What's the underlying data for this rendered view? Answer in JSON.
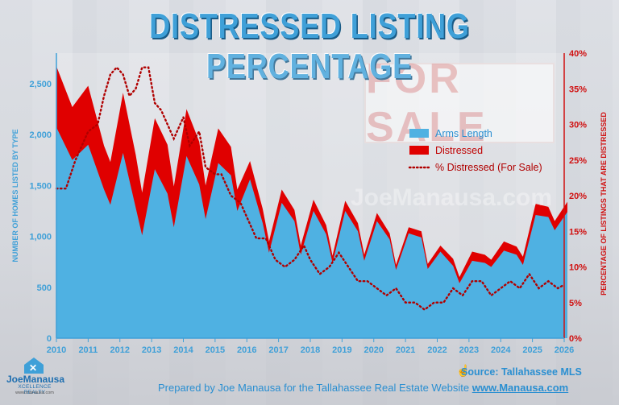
{
  "title": "DISTRESSED LISTING PERCENTAGE",
  "background_sign": "FOR SALE",
  "watermark": "JoeManausa.com",
  "footer": {
    "prepared_by": "Prepared by Joe Manausa for the Tallahassee Real Estate Website",
    "website": "www.Manausa.com",
    "source": "Source: Tallahassee MLS"
  },
  "logo": {
    "name": "JoeManausa",
    "tagline": "XCELLENCE REALTY",
    "url": "www.manausa.com"
  },
  "colors": {
    "arms_length": "#4fb1e2",
    "distressed": "#e00000",
    "pct_line": "#b00000",
    "title": "#3fa0d8",
    "axis_text": "#3fa0d8",
    "right_axis_text": "#d01010"
  },
  "chart_data": {
    "type": "area",
    "x_axis": {
      "label": "",
      "ticks": [
        "2010",
        "2011",
        "2012",
        "2013",
        "2014",
        "2015",
        "2016",
        "2017",
        "2018",
        "2019",
        "2020",
        "2021",
        "2022",
        "2023",
        "2024",
        "2025",
        "2026"
      ],
      "range": [
        2010,
        2026
      ]
    },
    "y_axis_left": {
      "label": "NUMBER OF HOMES LISTED BY TYPE",
      "range": [
        0,
        2800
      ],
      "ticks": [
        "0",
        "500",
        "1,000",
        "1,500",
        "2,000",
        "2,500"
      ]
    },
    "y_axis_right": {
      "label": "PERCENTAGE OF LISTINGS THAT ARE DISTRESSED",
      "range": [
        0,
        40
      ],
      "ticks": [
        "0%",
        "5%",
        "10%",
        "15%",
        "20%",
        "25%",
        "30%",
        "35%",
        "40%"
      ]
    },
    "legend_position": "top-right",
    "series": [
      {
        "name": "Arms Length",
        "type": "area",
        "axis": "left",
        "x": [
          2010.0,
          2010.5,
          2011.0,
          2011.5,
          2011.7,
          2012.1,
          2012.5,
          2012.7,
          2013.1,
          2013.5,
          2013.7,
          2014.1,
          2014.5,
          2014.7,
          2015.1,
          2015.5,
          2015.7,
          2016.1,
          2016.5,
          2016.7,
          2017.1,
          2017.5,
          2017.7,
          2018.1,
          2018.5,
          2018.7,
          2019.1,
          2019.5,
          2019.7,
          2020.1,
          2020.5,
          2020.7,
          2021.1,
          2021.5,
          2021.7,
          2022.1,
          2022.5,
          2022.7,
          2023.1,
          2023.5,
          2023.7,
          2024.1,
          2024.5,
          2024.7,
          2025.1,
          2025.5,
          2025.7,
          2026.1
        ],
        "values": [
          2070,
          1750,
          1900,
          1460,
          1310,
          1820,
          1280,
          1010,
          1660,
          1420,
          1090,
          1790,
          1510,
          1170,
          1720,
          1600,
          1250,
          1560,
          1130,
          840,
          1330,
          1150,
          820,
          1250,
          1020,
          740,
          1250,
          1050,
          760,
          1150,
          970,
          670,
          1030,
          990,
          680,
          850,
          710,
          540,
          760,
          740,
          700,
          860,
          820,
          720,
          1210,
          1190,
          1060,
          1240
        ]
      },
      {
        "name": "Distressed",
        "type": "area",
        "axis": "left",
        "stacked_total_x": [
          2010.0,
          2010.5,
          2011.0,
          2011.5,
          2011.7,
          2012.1,
          2012.5,
          2012.7,
          2013.1,
          2013.5,
          2013.7,
          2014.1,
          2014.5,
          2014.7,
          2015.1,
          2015.5,
          2015.7,
          2016.1,
          2016.5,
          2016.7,
          2017.1,
          2017.5,
          2017.7,
          2018.1,
          2018.5,
          2018.7,
          2019.1,
          2019.5,
          2019.7,
          2020.1,
          2020.5,
          2020.7,
          2021.1,
          2021.5,
          2021.7,
          2022.1,
          2022.5,
          2022.7,
          2023.1,
          2023.5,
          2023.7,
          2024.1,
          2024.5,
          2024.7,
          2025.1,
          2025.5,
          2025.7,
          2026.1
        ],
        "values": [
          600,
          520,
          580,
          430,
          420,
          590,
          520,
          420,
          500,
          480,
          400,
          460,
          420,
          330,
          340,
          280,
          210,
          180,
          140,
          110,
          130,
          110,
          90,
          110,
          90,
          70,
          100,
          80,
          60,
          80,
          60,
          50,
          60,
          60,
          50,
          60,
          70,
          60,
          90,
          80,
          70,
          90,
          80,
          80,
          110,
          100,
          90,
          100
        ]
      },
      {
        "name": "% Distressed (For Sale)",
        "type": "line",
        "style": "dotted",
        "axis": "right",
        "x": [
          2010.0,
          2010.3,
          2010.6,
          2011.0,
          2011.3,
          2011.5,
          2011.7,
          2011.9,
          2012.1,
          2012.3,
          2012.5,
          2012.7,
          2012.9,
          2013.1,
          2013.3,
          2013.5,
          2013.7,
          2014.0,
          2014.2,
          2014.5,
          2014.7,
          2015.0,
          2015.2,
          2015.5,
          2015.8,
          2016.0,
          2016.3,
          2016.6,
          2016.9,
          2017.2,
          2017.5,
          2017.8,
          2018.0,
          2018.3,
          2018.6,
          2018.9,
          2019.2,
          2019.5,
          2019.8,
          2020.1,
          2020.4,
          2020.7,
          2021.0,
          2021.3,
          2021.6,
          2021.9,
          2022.2,
          2022.5,
          2022.8,
          2023.1,
          2023.4,
          2023.7,
          2024.0,
          2024.3,
          2024.6,
          2024.9,
          2025.2,
          2025.5,
          2025.8,
          2026.0
        ],
        "values": [
          21,
          21,
          25,
          29,
          30,
          34,
          37,
          38,
          37,
          34,
          35,
          38,
          38,
          33,
          32,
          30,
          28,
          31,
          27,
          29,
          24,
          23,
          23,
          20,
          19,
          17,
          14,
          14,
          11,
          10,
          11,
          13,
          11,
          9,
          10,
          12,
          10,
          8,
          8,
          7,
          6,
          7,
          5,
          5,
          4,
          5,
          5,
          7,
          6,
          8,
          8,
          6,
          7,
          8,
          7,
          9,
          7,
          8,
          7,
          7.5
        ]
      }
    ]
  }
}
